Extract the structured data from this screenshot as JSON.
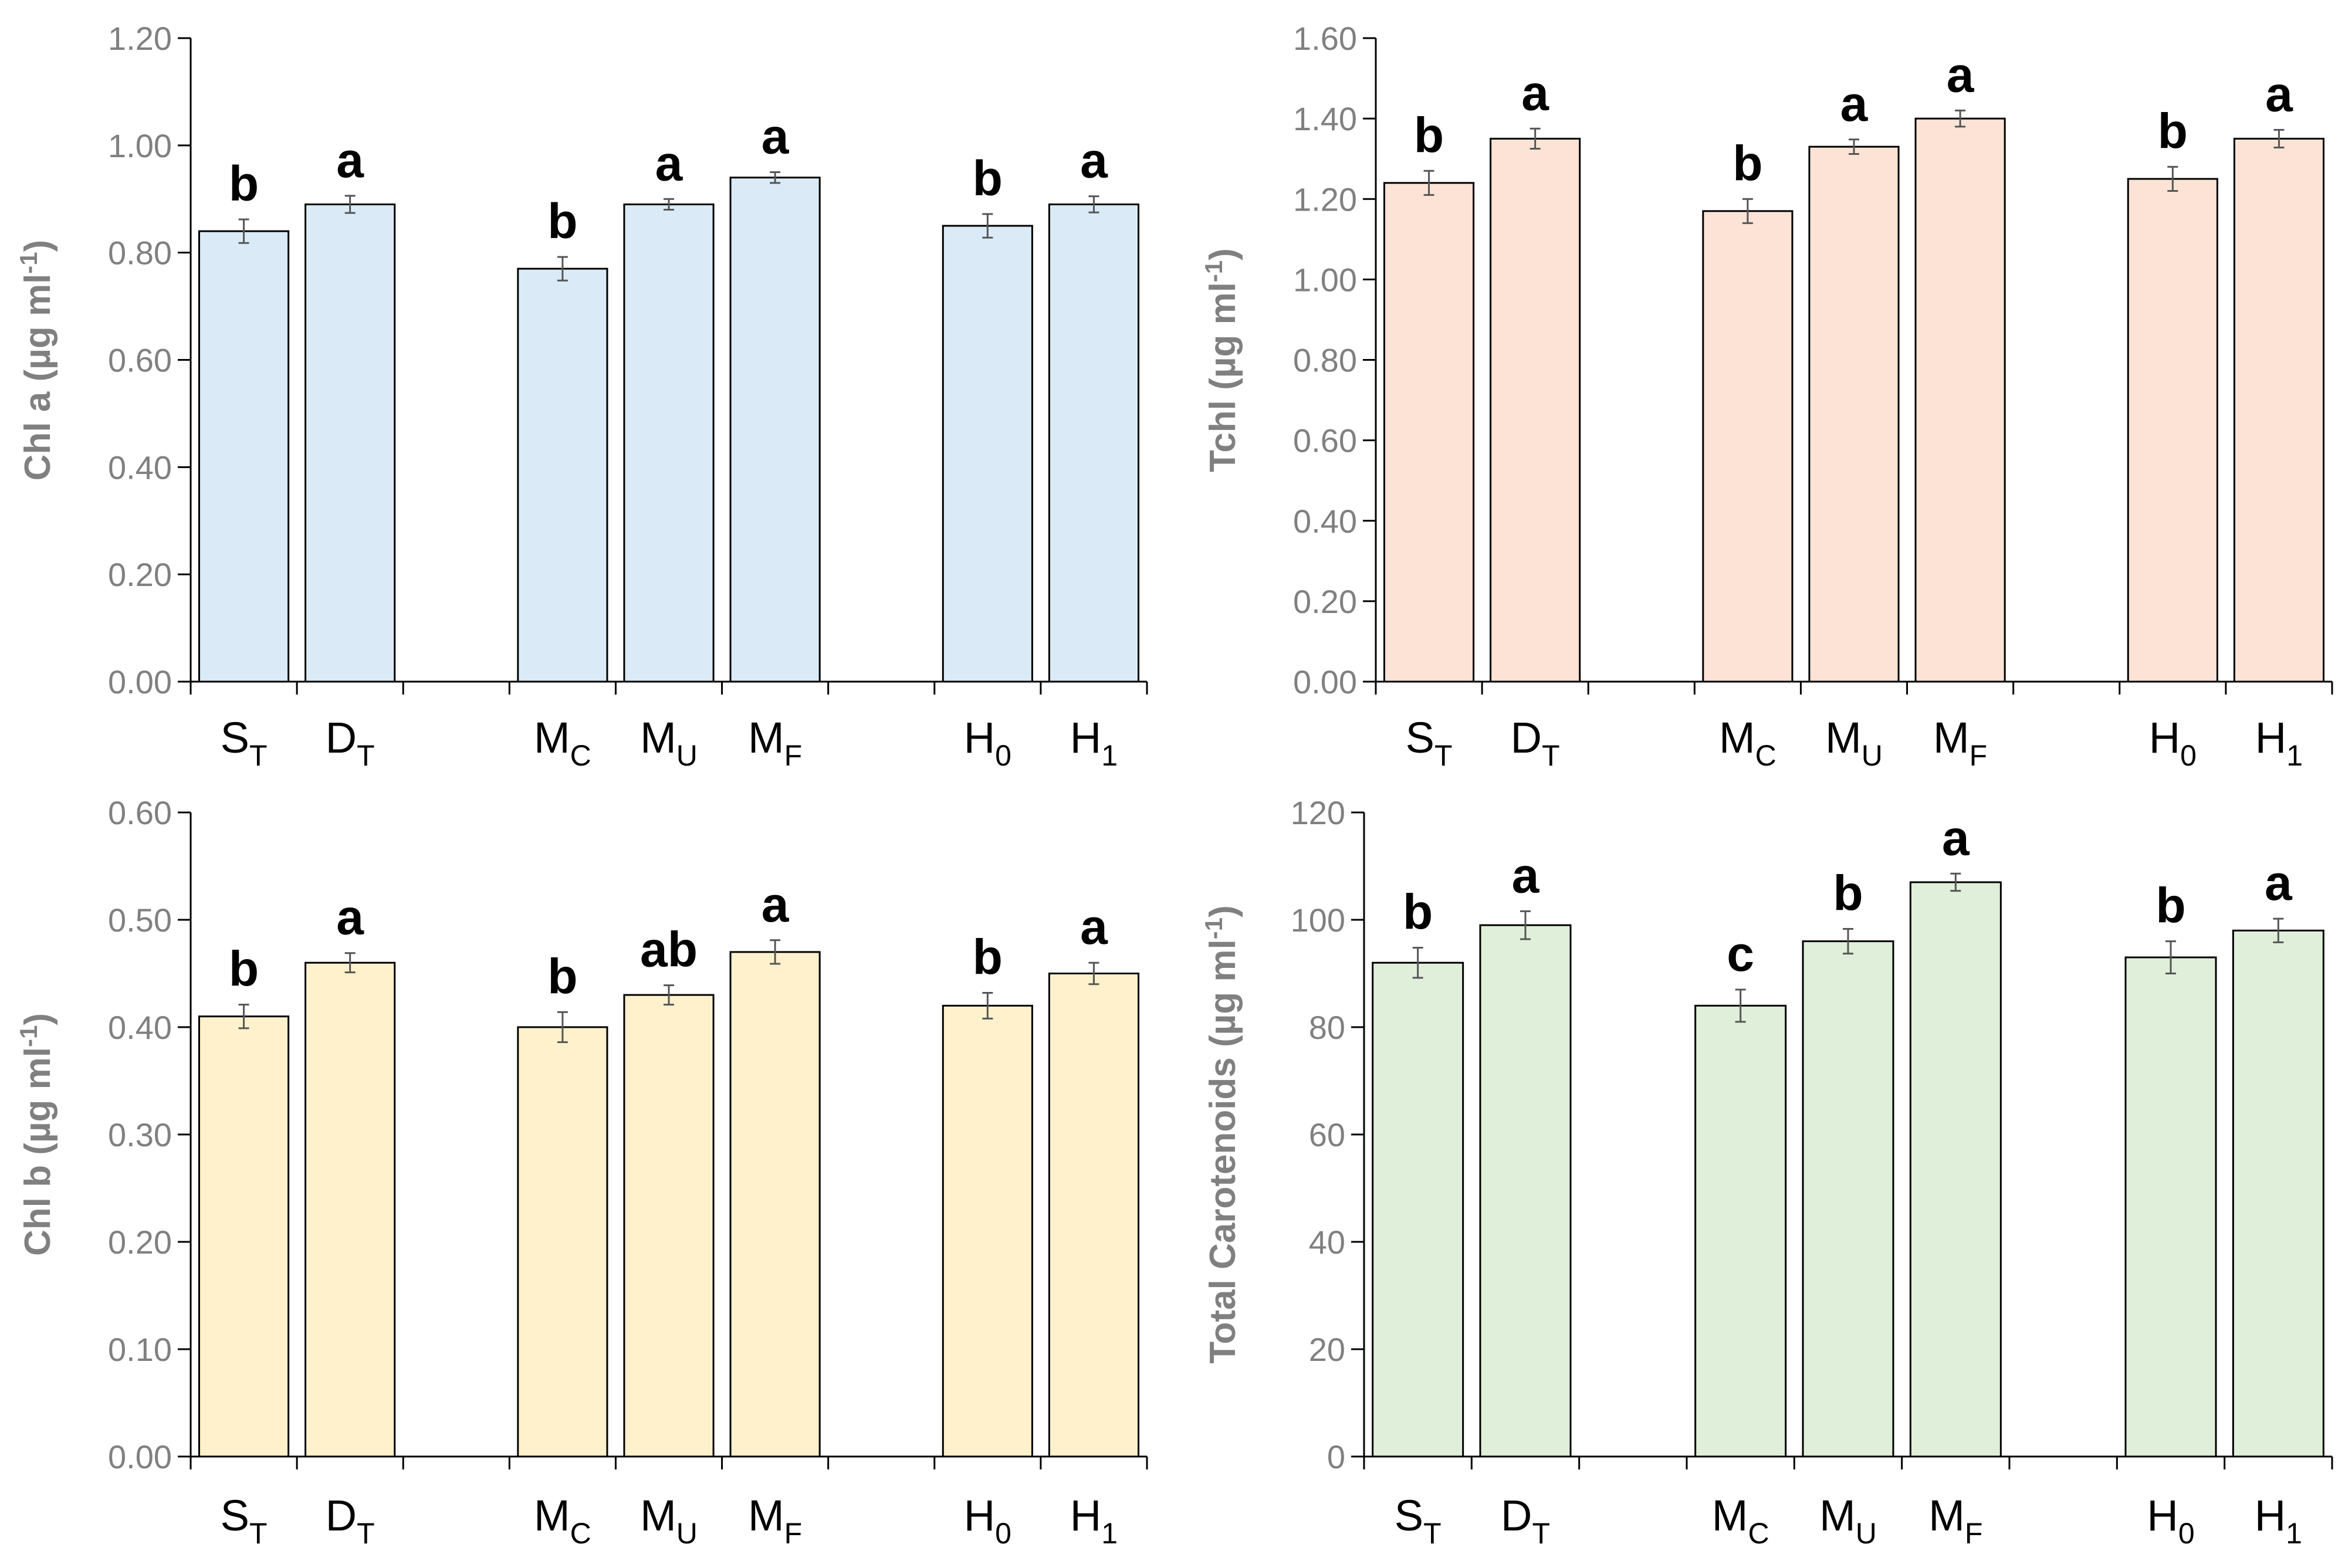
{
  "chart_data": [
    {
      "type": "bar",
      "ylabel": "Chl a (µg ml",
      "ylabel_sup": "-1",
      "ylabel_tail": ")",
      "ylim": [
        0,
        1.2
      ],
      "ticks": [
        "0.00",
        "0.20",
        "0.40",
        "0.60",
        "0.80",
        "1.00",
        "1.20"
      ],
      "color": "#DAEBF7",
      "categories": [
        {
          "base": "S",
          "sub": "T"
        },
        {
          "base": "D",
          "sub": "T"
        },
        {
          "base": "M",
          "sub": "C"
        },
        {
          "base": "M",
          "sub": "U"
        },
        {
          "base": "M",
          "sub": "F"
        },
        {
          "base": "H",
          "sub": "0"
        },
        {
          "base": "H",
          "sub": "1"
        }
      ],
      "values": [
        0.84,
        0.89,
        0.77,
        0.89,
        0.94,
        0.85,
        0.89
      ],
      "errors": [
        0.022,
        0.016,
        0.022,
        0.01,
        0.01,
        0.022,
        0.015
      ],
      "letters": [
        "b",
        "a",
        "b",
        "a",
        "a",
        "b",
        "a"
      ]
    },
    {
      "type": "bar",
      "ylabel": "Tchl (µg ml",
      "ylabel_sup": "-1",
      "ylabel_tail": ")",
      "ylim": [
        0,
        1.6
      ],
      "ticks": [
        "0.00",
        "0.20",
        "0.40",
        "0.60",
        "0.80",
        "1.00",
        "1.20",
        "1.40",
        "1.60"
      ],
      "color": "#FCE3D5",
      "categories": [
        {
          "base": "S",
          "sub": "T"
        },
        {
          "base": "D",
          "sub": "T"
        },
        {
          "base": "M",
          "sub": "C"
        },
        {
          "base": "M",
          "sub": "U"
        },
        {
          "base": "M",
          "sub": "F"
        },
        {
          "base": "H",
          "sub": "0"
        },
        {
          "base": "H",
          "sub": "1"
        }
      ],
      "values": [
        1.24,
        1.35,
        1.17,
        1.33,
        1.4,
        1.25,
        1.35
      ],
      "errors": [
        0.03,
        0.025,
        0.03,
        0.018,
        0.02,
        0.03,
        0.022
      ],
      "letters": [
        "b",
        "a",
        "b",
        "a",
        "a",
        "b",
        "a"
      ]
    },
    {
      "type": "bar",
      "ylabel": "Chl b (µg ml",
      "ylabel_sup": "-1",
      "ylabel_tail": ")",
      "ylim": [
        0,
        0.6
      ],
      "ticks": [
        "0.00",
        "0.10",
        "0.20",
        "0.30",
        "0.40",
        "0.50",
        "0.60"
      ],
      "color": "#FEF1CB",
      "categories": [
        {
          "base": "S",
          "sub": "T"
        },
        {
          "base": "D",
          "sub": "T"
        },
        {
          "base": "M",
          "sub": "C"
        },
        {
          "base": "M",
          "sub": "U"
        },
        {
          "base": "M",
          "sub": "F"
        },
        {
          "base": "H",
          "sub": "0"
        },
        {
          "base": "H",
          "sub": "1"
        }
      ],
      "values": [
        0.41,
        0.46,
        0.4,
        0.43,
        0.47,
        0.42,
        0.45
      ],
      "errors": [
        0.011,
        0.009,
        0.014,
        0.009,
        0.011,
        0.012,
        0.01
      ],
      "letters": [
        "b",
        "a",
        "b",
        "ab",
        "a",
        "b",
        "a"
      ]
    },
    {
      "type": "bar",
      "ylabel": "Total Carotenoids (µg ml",
      "ylabel_sup": "-1",
      "ylabel_tail": ")",
      "ylim": [
        0,
        120
      ],
      "ticks": [
        "0",
        "20",
        "40",
        "60",
        "80",
        "100",
        "120"
      ],
      "color": "#E0EFD9",
      "categories": [
        {
          "base": "S",
          "sub": "T"
        },
        {
          "base": "D",
          "sub": "T"
        },
        {
          "base": "M",
          "sub": "C"
        },
        {
          "base": "M",
          "sub": "U"
        },
        {
          "base": "M",
          "sub": "F"
        },
        {
          "base": "H",
          "sub": "0"
        },
        {
          "base": "H",
          "sub": "1"
        }
      ],
      "values": [
        92,
        99,
        84,
        96,
        107,
        93,
        98
      ],
      "errors": [
        2.8,
        2.6,
        3.0,
        2.3,
        1.6,
        3.0,
        2.2
      ],
      "letters": [
        "b",
        "a",
        "c",
        "b",
        "a",
        "b",
        "a"
      ]
    }
  ]
}
